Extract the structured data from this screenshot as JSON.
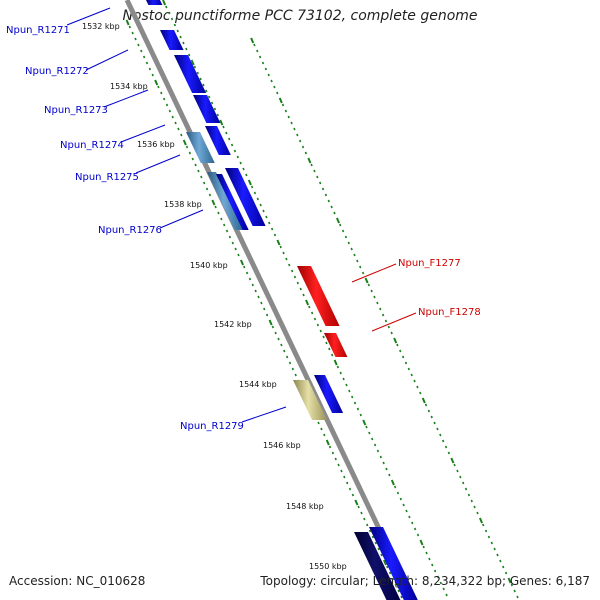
{
  "title": "Nostoc punctiforme PCC 73102, complete genome",
  "accession_text": "Accession: NC_010628",
  "summary_text": "Topology: circular; Length: 8,234,322 bp; Genes: 6,187",
  "colors": {
    "backbone": "#888888",
    "ticks": "#1a7f1a",
    "reverse_label": "#0000cc",
    "forward_label": "#cc0000",
    "gene_blue": "#0000ee",
    "gene_steel": "#4682b4",
    "gene_red": "#ee0000",
    "gene_khaki": "#c8c080",
    "gene_navy": "#00005a"
  },
  "kbp_ticks": [
    "1532 kbp",
    "1534 kbp",
    "1536 kbp",
    "1538 kbp",
    "1540 kbp",
    "1542 kbp",
    "1544 kbp",
    "1546 kbp",
    "1548 kbp",
    "1550 kbp"
  ],
  "reverse_genes": [
    "Npun_R1271",
    "Npun_R1272",
    "Npun_R1273",
    "Npun_R1274",
    "Npun_R1275",
    "Npun_R1276",
    "Npun_R1279"
  ],
  "forward_genes": [
    "Npun_F1277",
    "Npun_F1278"
  ]
}
